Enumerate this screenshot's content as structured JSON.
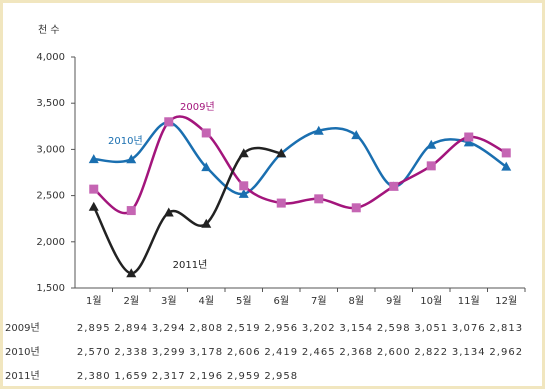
{
  "chart_data": {
    "type": "line",
    "y_label": "천 수",
    "categories": [
      "1월",
      "2월",
      "3월",
      "4월",
      "5월",
      "6월",
      "7월",
      "8월",
      "9월",
      "10월",
      "11월",
      "12월"
    ],
    "ylim": [
      1500,
      4000
    ],
    "yticks": [
      {
        "value": 1500,
        "label": "1,500"
      },
      {
        "value": 2000,
        "label": "2,000"
      },
      {
        "value": 2500,
        "label": "2,500"
      },
      {
        "value": 3000,
        "label": "3,000"
      },
      {
        "value": 3500,
        "label": "3,500"
      },
      {
        "value": 4000,
        "label": "4,000"
      }
    ],
    "series": [
      {
        "name": "2010년",
        "color": "#1a6fb0",
        "marker": "triangle",
        "values": [
          2895,
          2894,
          3294,
          2808,
          2519,
          2956,
          3202,
          3154,
          2598,
          3051,
          3076,
          2813
        ],
        "value_labels": [
          "2,895",
          "2,894",
          "3,294",
          "2,808",
          "2,519",
          "2,956",
          "3,202",
          "3,154",
          "2,598",
          "3,051",
          "3,076",
          "2,813"
        ]
      },
      {
        "name": "2009년",
        "color": "#a3157c",
        "marker": "square",
        "values": [
          2570,
          2338,
          3299,
          3178,
          2606,
          2419,
          2465,
          2368,
          2600,
          2822,
          3134,
          2962
        ],
        "value_labels": [
          "2,570",
          "2,338",
          "3,299",
          "3,178",
          "2,606",
          "2,419",
          "2,465",
          "2,368",
          "2,600",
          "2,822",
          "3,134",
          "2,962"
        ]
      },
      {
        "name": "2011년",
        "color": "#222222",
        "marker": "triangle",
        "values": [
          2380,
          1659,
          2317,
          2196,
          2959,
          2958,
          null,
          null,
          null,
          null,
          null,
          null
        ],
        "value_labels": [
          "2,380",
          "1,659",
          "2,317",
          "2,196",
          "2,959",
          "2,958",
          null,
          null,
          null,
          null,
          null,
          null
        ]
      }
    ],
    "table_row_labels": [
      "2009년",
      "2010년",
      "2011년"
    ]
  }
}
